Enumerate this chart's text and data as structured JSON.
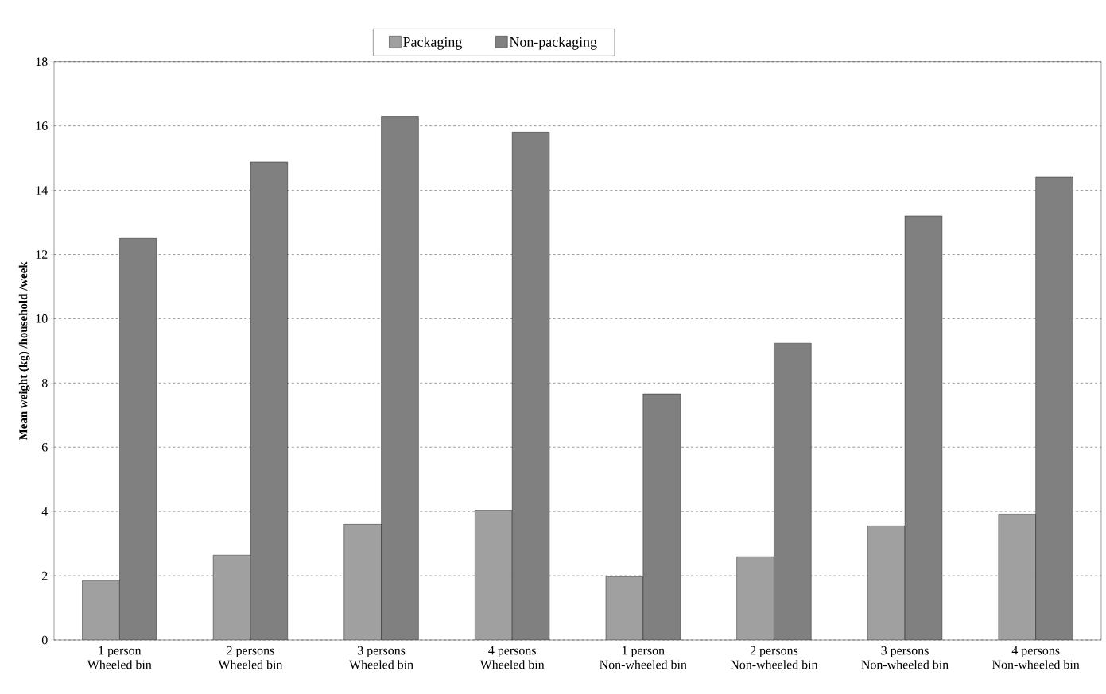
{
  "chart_data": {
    "type": "bar",
    "ylabel": "Mean weight (kg) /household /week",
    "categories": [
      "1 person\nWheeled bin",
      "2 persons\nWheeled bin",
      "3 persons\nWheeled bin",
      "4 persons\nWheeled bin",
      "1 person\nNon-wheeled bin",
      "2 persons\nNon-wheeled bin",
      "3 persons\nNon-wheeled bin",
      "4 persons\nNon-wheeled bin"
    ],
    "series": [
      {
        "name": "Packaging",
        "color": "#a0a0a0",
        "values": [
          1.85,
          2.64,
          3.6,
          4.04,
          1.97,
          2.59,
          3.55,
          3.92
        ]
      },
      {
        "name": "Non-packaging",
        "color": "#808080",
        "values": [
          12.5,
          14.88,
          16.3,
          15.81,
          7.66,
          9.24,
          13.2,
          14.41
        ]
      }
    ],
    "ylim": [
      0,
      18
    ],
    "yticks": [
      0,
      2,
      4,
      6,
      8,
      10,
      12,
      14,
      16,
      18
    ],
    "grid": "y",
    "legend": "top"
  }
}
